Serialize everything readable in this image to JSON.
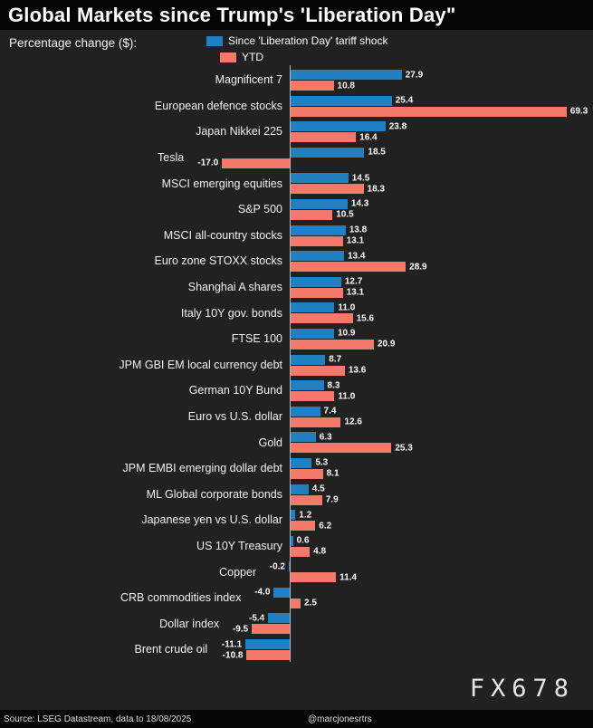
{
  "header": {
    "title": "Global Markets since Trump's 'Liberation Day\""
  },
  "legend": {
    "caption": "Percentage change ($):",
    "series": [
      {
        "name": "Since 'Liberation Day' tariff shock",
        "color": "#1f80c4"
      },
      {
        "name": "YTD",
        "color": "#f4796b"
      }
    ]
  },
  "footer": {
    "source": "Source: LSEG Datastream, data to 18/08/2025",
    "handle": "@marcjonesrtrs",
    "watermark": "FX678"
  },
  "chart_data": {
    "type": "bar",
    "orientation": "horizontal",
    "title": "Global Markets since Trump's 'Liberation Day\"",
    "xlabel": "Percentage change ($)",
    "xlim": [
      -20,
      72
    ],
    "grid": false,
    "legend_position": "top",
    "categories": [
      "Magnificent 7",
      "European defence stocks",
      "Japan Nikkei 225",
      "Tesla",
      "MSCI emerging equities",
      "S&P 500",
      "MSCI all-country stocks",
      "Euro zone STOXX stocks",
      "Shanghai A shares",
      "Italy 10Y gov. bonds",
      "FTSE 100",
      "JPM GBI EM local currency debt",
      "German 10Y Bund",
      "Euro vs U.S. dollar",
      "Gold",
      "JPM EMBI emerging dollar debt",
      "ML Global corporate bonds",
      "Japanese yen vs U.S. dollar",
      "US 10Y Treasury",
      "Copper",
      "CRB commodities index",
      "Dollar index",
      "Brent crude oil"
    ],
    "series": [
      {
        "name": "Since 'Liberation Day' tariff shock",
        "color": "#1f80c4",
        "values": [
          27.9,
          25.4,
          23.8,
          18.5,
          14.5,
          14.3,
          13.8,
          13.4,
          12.7,
          11.0,
          10.9,
          8.7,
          8.3,
          7.4,
          6.3,
          5.3,
          4.5,
          1.2,
          0.6,
          -0.2,
          -4.0,
          -5.4,
          -11.1
        ]
      },
      {
        "name": "YTD",
        "color": "#f4796b",
        "values": [
          10.8,
          69.3,
          16.4,
          -17.0,
          18.3,
          10.5,
          13.1,
          28.9,
          13.1,
          15.6,
          20.9,
          13.6,
          11.0,
          12.6,
          25.3,
          8.1,
          7.9,
          6.2,
          4.8,
          11.4,
          2.5,
          -9.5,
          -10.8
        ]
      }
    ]
  }
}
